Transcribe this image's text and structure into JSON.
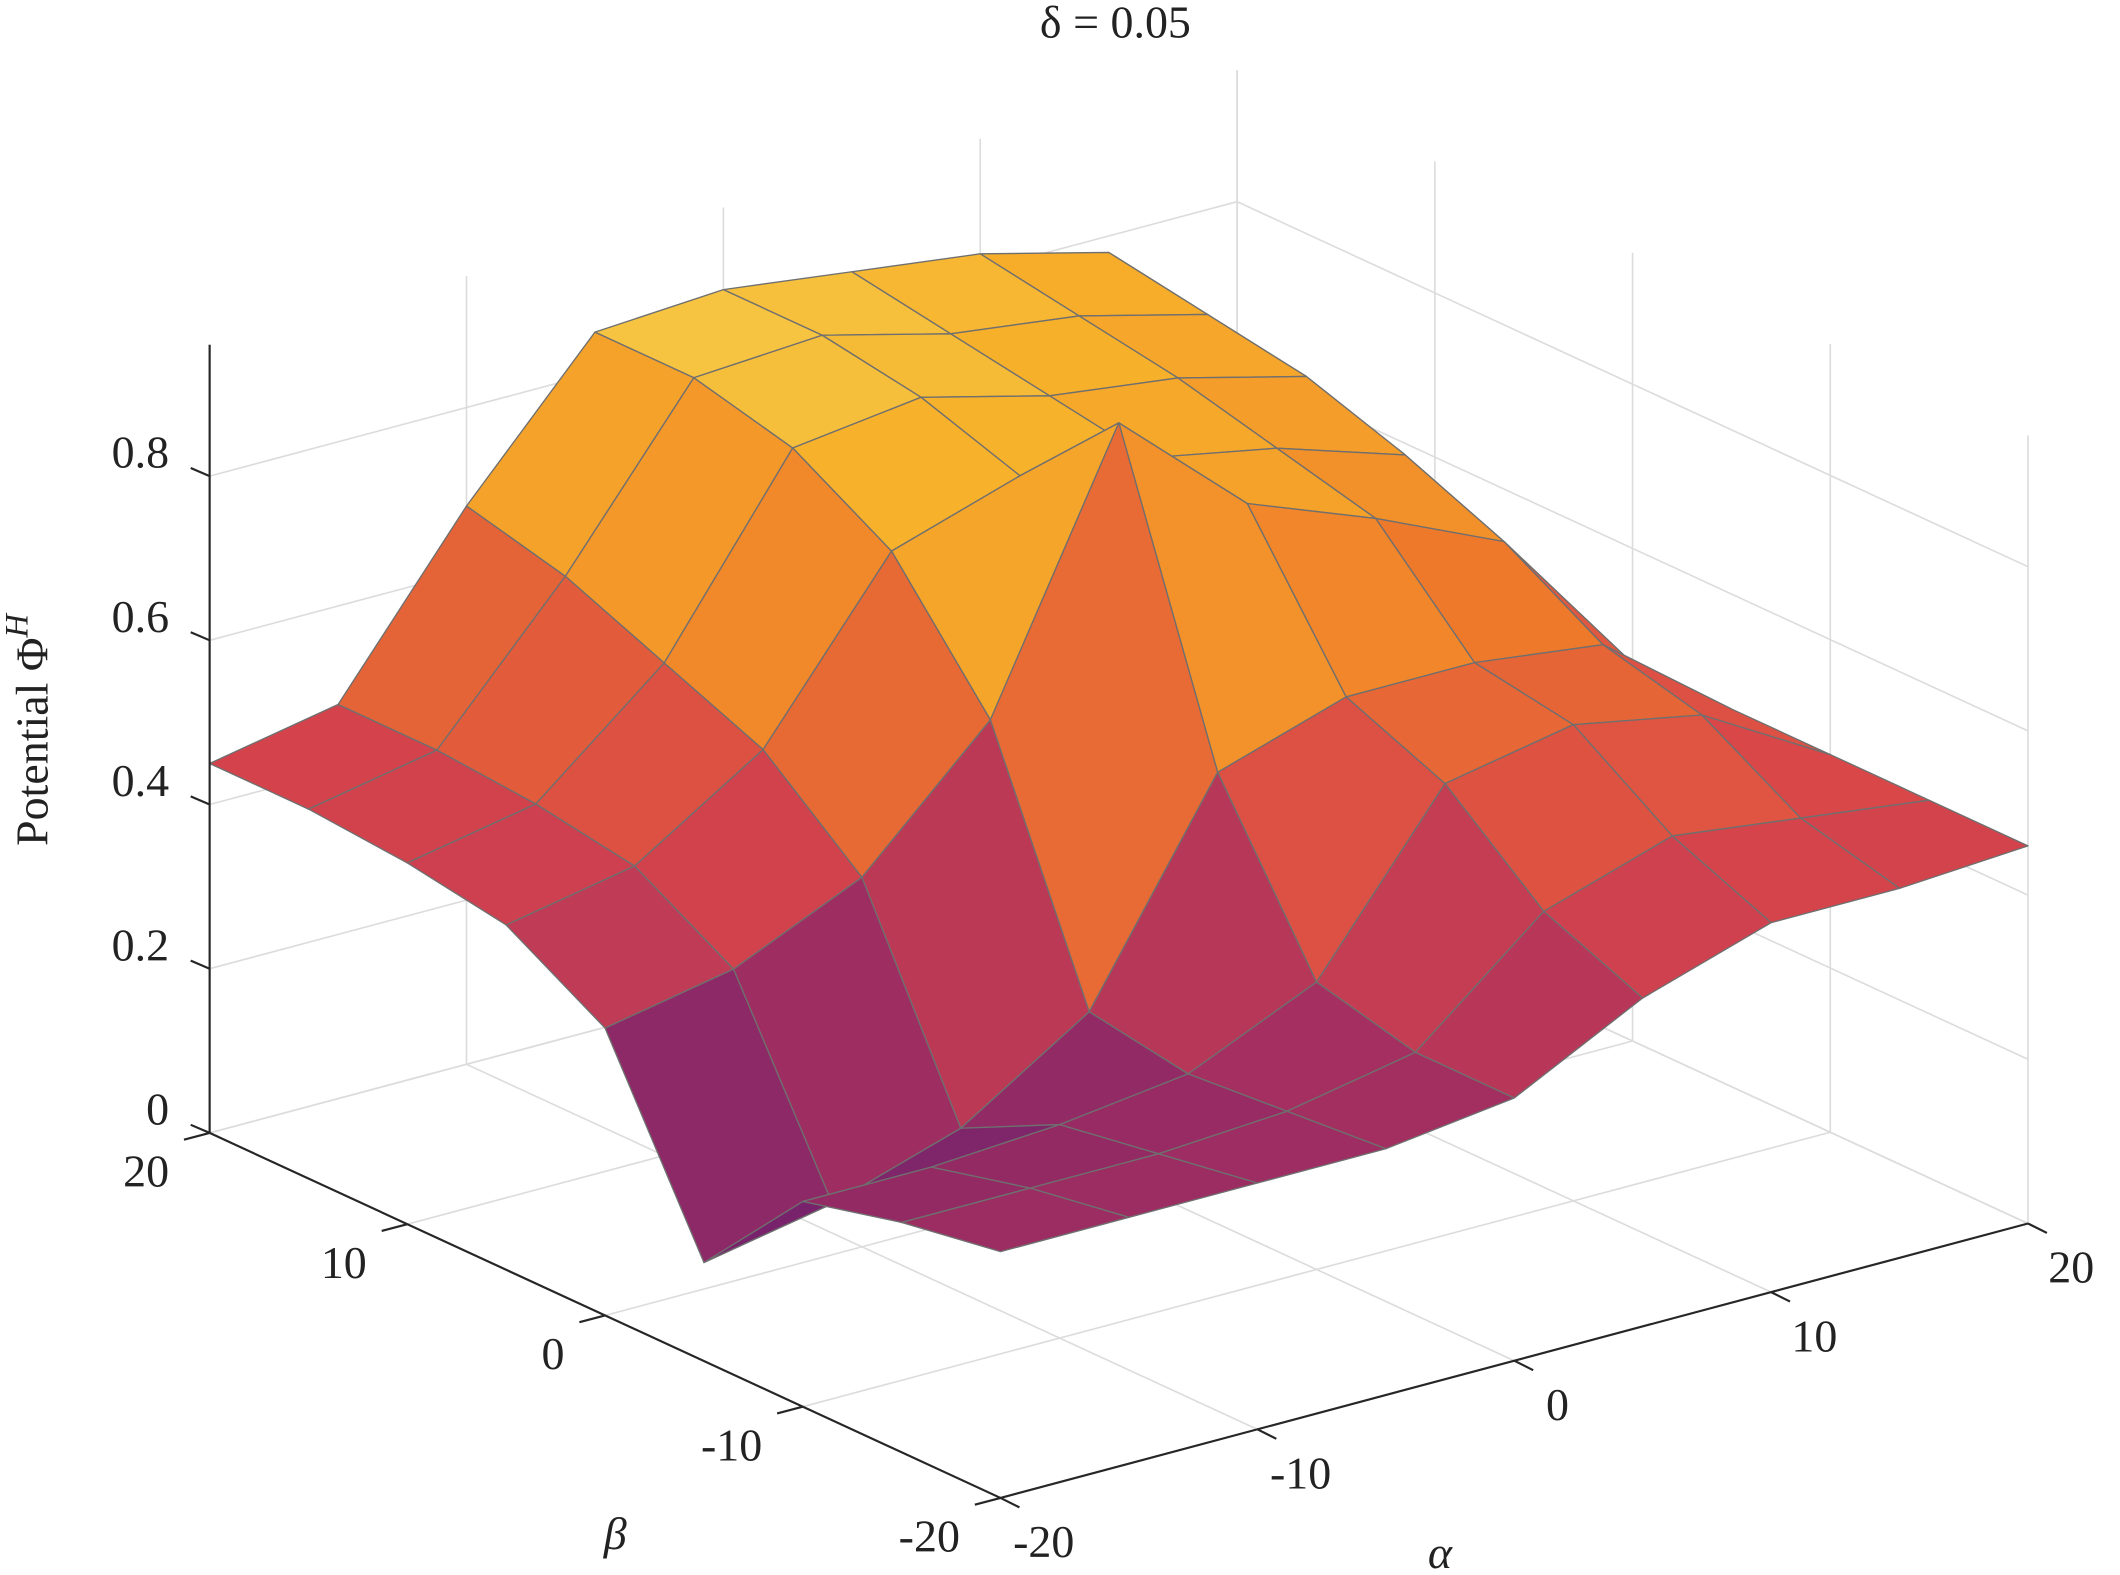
{
  "chart_data": {
    "type": "surface3d",
    "title": "δ = 0.05",
    "xlabel": "α",
    "ylabel": "β",
    "zlabel": "Potential Φ",
    "zlabel_superscript": "H",
    "x": [
      -20,
      -15,
      -10,
      -5,
      0,
      5,
      10,
      15,
      20
    ],
    "y": [
      -20,
      -15,
      -10,
      -5,
      0,
      5,
      10,
      15,
      20
    ],
    "z": [
      [
        0.3,
        0.28,
        0.25,
        0.12,
        0.35,
        0.42,
        0.44,
        0.45,
        0.45
      ],
      [
        0.3,
        0.28,
        0.25,
        0.15,
        0.38,
        0.45,
        0.47,
        0.48,
        0.48
      ],
      [
        0.3,
        0.28,
        0.26,
        0.2,
        0.45,
        0.55,
        0.6,
        0.65,
        0.68
      ],
      [
        0.3,
        0.29,
        0.28,
        0.3,
        0.6,
        0.75,
        0.82,
        0.85,
        0.85
      ],
      [
        0.32,
        0.32,
        0.35,
        0.55,
        0.92,
        0.8,
        0.84,
        0.86,
        0.86
      ],
      [
        0.4,
        0.45,
        0.55,
        0.6,
        0.78,
        0.78,
        0.8,
        0.82,
        0.84
      ],
      [
        0.45,
        0.5,
        0.58,
        0.6,
        0.72,
        0.75,
        0.78,
        0.8,
        0.82
      ],
      [
        0.45,
        0.48,
        0.55,
        0.58,
        0.65,
        0.7,
        0.74,
        0.76,
        0.78
      ],
      [
        0.46,
        0.46,
        0.46,
        0.46,
        0.46,
        0.46,
        0.46,
        0.46,
        0.46
      ]
    ],
    "xlim": [
      -20,
      20
    ],
    "ylim": [
      -20,
      20
    ],
    "zlim": [
      0,
      0.96
    ],
    "xticks": [
      -20,
      -10,
      0,
      10,
      20
    ],
    "yticks": [
      -20,
      -10,
      0,
      10,
      20
    ],
    "zticks": [
      0,
      0.2,
      0.4,
      0.6,
      0.8
    ],
    "colormap": [
      "#2b1255",
      "#6a1f6e",
      "#a8305f",
      "#d8454a",
      "#ef7a2a",
      "#f7b02a",
      "#f3e96a"
    ],
    "edge_color": "#6f6f6f",
    "grid": true
  }
}
